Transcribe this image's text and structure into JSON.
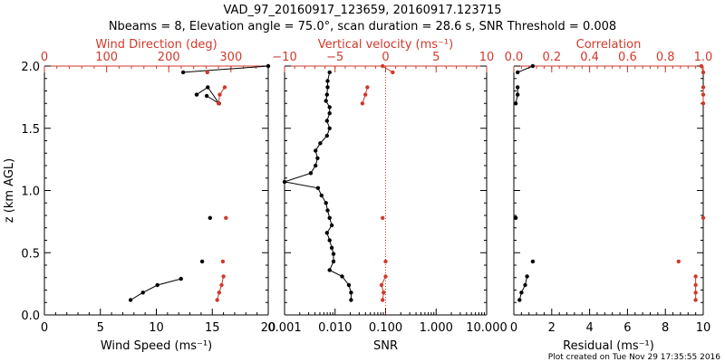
{
  "header": {
    "title_line1": "VAD_97_20160917_123659, 20160917.123715",
    "title_line2": "Nbeams = 8, Elevation angle = 75.0°, scan duration = 28.6 s, SNR Threshold = 0.008"
  },
  "footer": {
    "note": "Plot created on Tue Nov 29 17:35:55 2016"
  },
  "colors": {
    "primary": "#000000",
    "secondary": "#d0392b"
  },
  "chart_data": [
    {
      "type": "line",
      "panel": "wind",
      "ylabel": "z (km AGL)",
      "ylim": [
        0,
        2.0
      ],
      "yticks": [
        "0.0",
        "0.5",
        "1.0",
        "1.5",
        "2.0"
      ],
      "bottom_axis": {
        "label": "Wind Speed (ms⁻¹)",
        "lim": [
          0,
          20
        ],
        "ticks": [
          "0",
          "5",
          "10",
          "15",
          "20"
        ]
      },
      "top_axis": {
        "label": "Wind Direction (deg)",
        "lim": [
          0,
          360
        ],
        "ticks": [
          "0",
          "100",
          "200",
          "300"
        ],
        "color": "#d0392b"
      },
      "series": [
        {
          "axis": "bottom",
          "style": "line-points",
          "color": "#000000",
          "points": [
            [
              7.7,
              0.12
            ],
            [
              8.8,
              0.18
            ],
            [
              10.1,
              0.24
            ],
            [
              12.2,
              0.29
            ]
          ]
        },
        {
          "axis": "bottom",
          "style": "points",
          "color": "#000000",
          "points": [
            [
              14.1,
              0.43
            ],
            [
              14.8,
              0.78
            ]
          ]
        },
        {
          "axis": "bottom",
          "style": "line-points",
          "color": "#000000",
          "points": [
            [
              13.6,
              1.77
            ],
            [
              14.6,
              1.83
            ],
            [
              15.6,
              1.7
            ],
            [
              14.5,
              1.76
            ]
          ]
        },
        {
          "axis": "bottom",
          "style": "line-points",
          "color": "#000000",
          "points": [
            [
              12.4,
              1.95
            ],
            [
              20.0,
              2.0
            ]
          ]
        },
        {
          "axis": "top",
          "style": "line-points",
          "color": "#d0392b",
          "points": [
            [
              278,
              0.12
            ],
            [
              281,
              0.18
            ],
            [
              285,
              0.24
            ],
            [
              288,
              0.31
            ]
          ]
        },
        {
          "axis": "top",
          "style": "points",
          "color": "#d0392b",
          "points": [
            [
              287,
              0.43
            ],
            [
              292,
              0.78
            ]
          ]
        },
        {
          "axis": "top",
          "style": "line-points",
          "color": "#d0392b",
          "points": [
            [
              280,
              1.7
            ],
            [
              282,
              1.77
            ],
            [
              290,
              1.83
            ]
          ]
        },
        {
          "axis": "top",
          "style": "points",
          "color": "#d0392b",
          "points": [
            [
              262,
              1.95
            ]
          ]
        }
      ]
    },
    {
      "type": "line",
      "panel": "snr",
      "ylim": [
        0,
        2.0
      ],
      "bottom_axis": {
        "label": "SNR",
        "scale": "log",
        "lim": [
          0.001,
          10
        ],
        "ticks": [
          "0.001",
          "0.010",
          "0.100",
          "1.000",
          "10.000"
        ]
      },
      "top_axis": {
        "label": "Vertical velocity (ms⁻¹)",
        "lim": [
          -10,
          10
        ],
        "ticks": [
          "−10",
          "−5",
          "0",
          "5",
          "10"
        ],
        "color": "#d0392b"
      },
      "reference_line": {
        "axis": "top",
        "value": 0,
        "style": "dotted",
        "color": "#d0392b"
      },
      "series": [
        {
          "axis": "bottom",
          "style": "line-points",
          "color": "#000000",
          "points": [
            [
              0.0207,
              0.12
            ],
            [
              0.0207,
              0.18
            ],
            [
              0.0188,
              0.24
            ],
            [
              0.0138,
              0.31
            ],
            [
              0.0078,
              0.36
            ],
            [
              0.0093,
              0.43
            ],
            [
              0.0093,
              0.49
            ],
            [
              0.0086,
              0.54
            ],
            [
              0.0078,
              0.6
            ],
            [
              0.0069,
              0.66
            ],
            [
              0.0086,
              0.72
            ],
            [
              0.0078,
              0.78
            ],
            [
              0.0071,
              0.84
            ],
            [
              0.0066,
              0.9
            ],
            [
              0.0054,
              0.96
            ],
            [
              0.0046,
              1.02
            ],
            [
              0.001,
              1.07
            ],
            [
              0.0033,
              1.14
            ],
            [
              0.0041,
              1.2
            ],
            [
              0.0045,
              1.26
            ],
            [
              0.0041,
              1.32
            ],
            [
              0.0051,
              1.38
            ],
            [
              0.0069,
              1.44
            ],
            [
              0.0078,
              1.5
            ],
            [
              0.0069,
              1.56
            ],
            [
              0.0078,
              1.62
            ],
            [
              0.0078,
              1.67
            ],
            [
              0.0066,
              1.72
            ],
            [
              0.0069,
              1.77
            ],
            [
              0.0071,
              1.83
            ],
            [
              0.0071,
              1.88
            ],
            [
              0.0078,
              1.95
            ]
          ]
        },
        {
          "axis": "top",
          "style": "line-points",
          "color": "#d0392b",
          "points": [
            [
              -0.3,
              0.12
            ],
            [
              -0.2,
              0.18
            ],
            [
              -0.4,
              0.24
            ],
            [
              0.0,
              0.31
            ]
          ]
        },
        {
          "axis": "top",
          "style": "points",
          "color": "#d0392b",
          "points": [
            [
              0.0,
              0.43
            ],
            [
              -0.3,
              0.78
            ]
          ]
        },
        {
          "axis": "top",
          "style": "line-points",
          "color": "#d0392b",
          "points": [
            [
              -2.3,
              1.7
            ],
            [
              -2.0,
              1.77
            ],
            [
              -1.8,
              1.83
            ]
          ]
        },
        {
          "axis": "top",
          "style": "line-points",
          "color": "#d0392b",
          "points": [
            [
              0.7,
              1.95
            ],
            [
              -0.3,
              2.0
            ]
          ]
        }
      ]
    },
    {
      "type": "line",
      "panel": "residual",
      "ylim": [
        0,
        2.0
      ],
      "bottom_axis": {
        "label": "Residual (ms⁻¹)",
        "lim": [
          0,
          10
        ],
        "ticks": [
          "0",
          "2",
          "4",
          "6",
          "8",
          "10"
        ]
      },
      "top_axis": {
        "label": "Correlation",
        "lim": [
          0,
          1.0
        ],
        "ticks": [
          "0.0",
          "0.2",
          "0.4",
          "0.6",
          "0.8",
          "1.0"
        ],
        "color": "#d0392b"
      },
      "series": [
        {
          "axis": "bottom",
          "style": "line-points",
          "color": "#000000",
          "points": [
            [
              0.3,
              0.12
            ],
            [
              0.4,
              0.18
            ],
            [
              0.6,
              0.24
            ],
            [
              0.7,
              0.31
            ]
          ]
        },
        {
          "axis": "bottom",
          "style": "points",
          "color": "#000000",
          "points": [
            [
              1.0,
              0.43
            ],
            [
              0.1,
              0.78
            ]
          ]
        },
        {
          "axis": "bottom",
          "style": "line-points",
          "color": "#000000",
          "points": [
            [
              0.1,
              1.7
            ],
            [
              0.2,
              1.77
            ],
            [
              0.2,
              1.83
            ]
          ]
        },
        {
          "axis": "bottom",
          "style": "line-points",
          "color": "#000000",
          "points": [
            [
              0.2,
              1.95
            ],
            [
              1.0,
              2.0
            ]
          ]
        },
        {
          "axis": "top",
          "style": "line-points",
          "color": "#d0392b",
          "points": [
            [
              0.96,
              0.12
            ],
            [
              0.96,
              0.18
            ],
            [
              0.96,
              0.24
            ],
            [
              0.96,
              0.31
            ]
          ]
        },
        {
          "axis": "top",
          "style": "points",
          "color": "#d0392b",
          "points": [
            [
              0.87,
              0.43
            ],
            [
              1.0,
              0.78
            ]
          ]
        },
        {
          "axis": "top",
          "style": "line-points",
          "color": "#d0392b",
          "points": [
            [
              1.0,
              1.7
            ],
            [
              1.0,
              1.77
            ],
            [
              1.0,
              1.83
            ]
          ]
        },
        {
          "axis": "top",
          "style": "line-points",
          "color": "#d0392b",
          "points": [
            [
              1.0,
              1.95
            ],
            [
              0.99,
              2.0
            ]
          ]
        }
      ]
    }
  ]
}
